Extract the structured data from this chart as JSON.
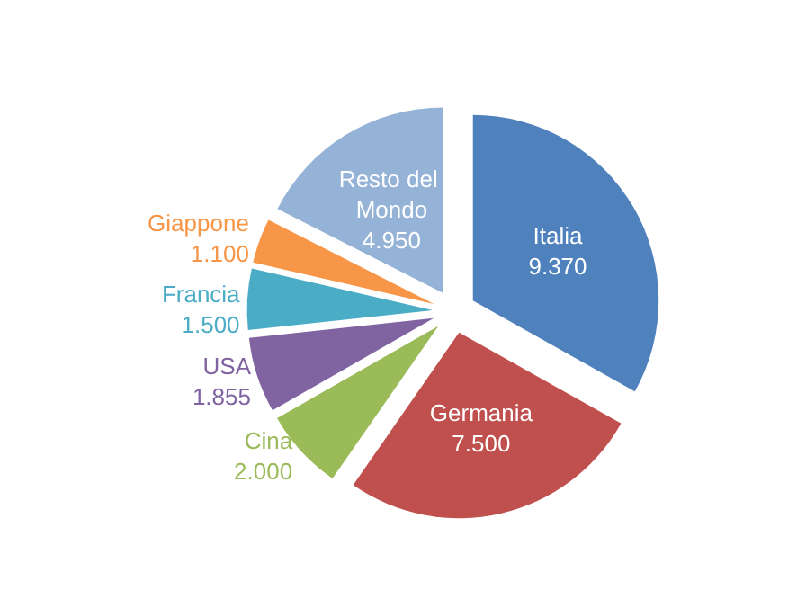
{
  "chart_data": {
    "type": "pie",
    "categories": [
      "Italia",
      "Germania",
      "Cina",
      "USA",
      "Francia",
      "Giappone",
      "Resto del Mondo"
    ],
    "values": [
      9370,
      7500,
      2000,
      1855,
      1500,
      1100,
      4950
    ],
    "value_labels": [
      "9.370",
      "7.500",
      "2.000",
      "1.855",
      "1.500",
      "1.100",
      "4.950"
    ],
    "colors": [
      "#4f81bd",
      "#c0504d",
      "#9bbb59",
      "#8064a2",
      "#4bacc6",
      "#f79646",
      "#95b3d7"
    ],
    "legend": false
  }
}
